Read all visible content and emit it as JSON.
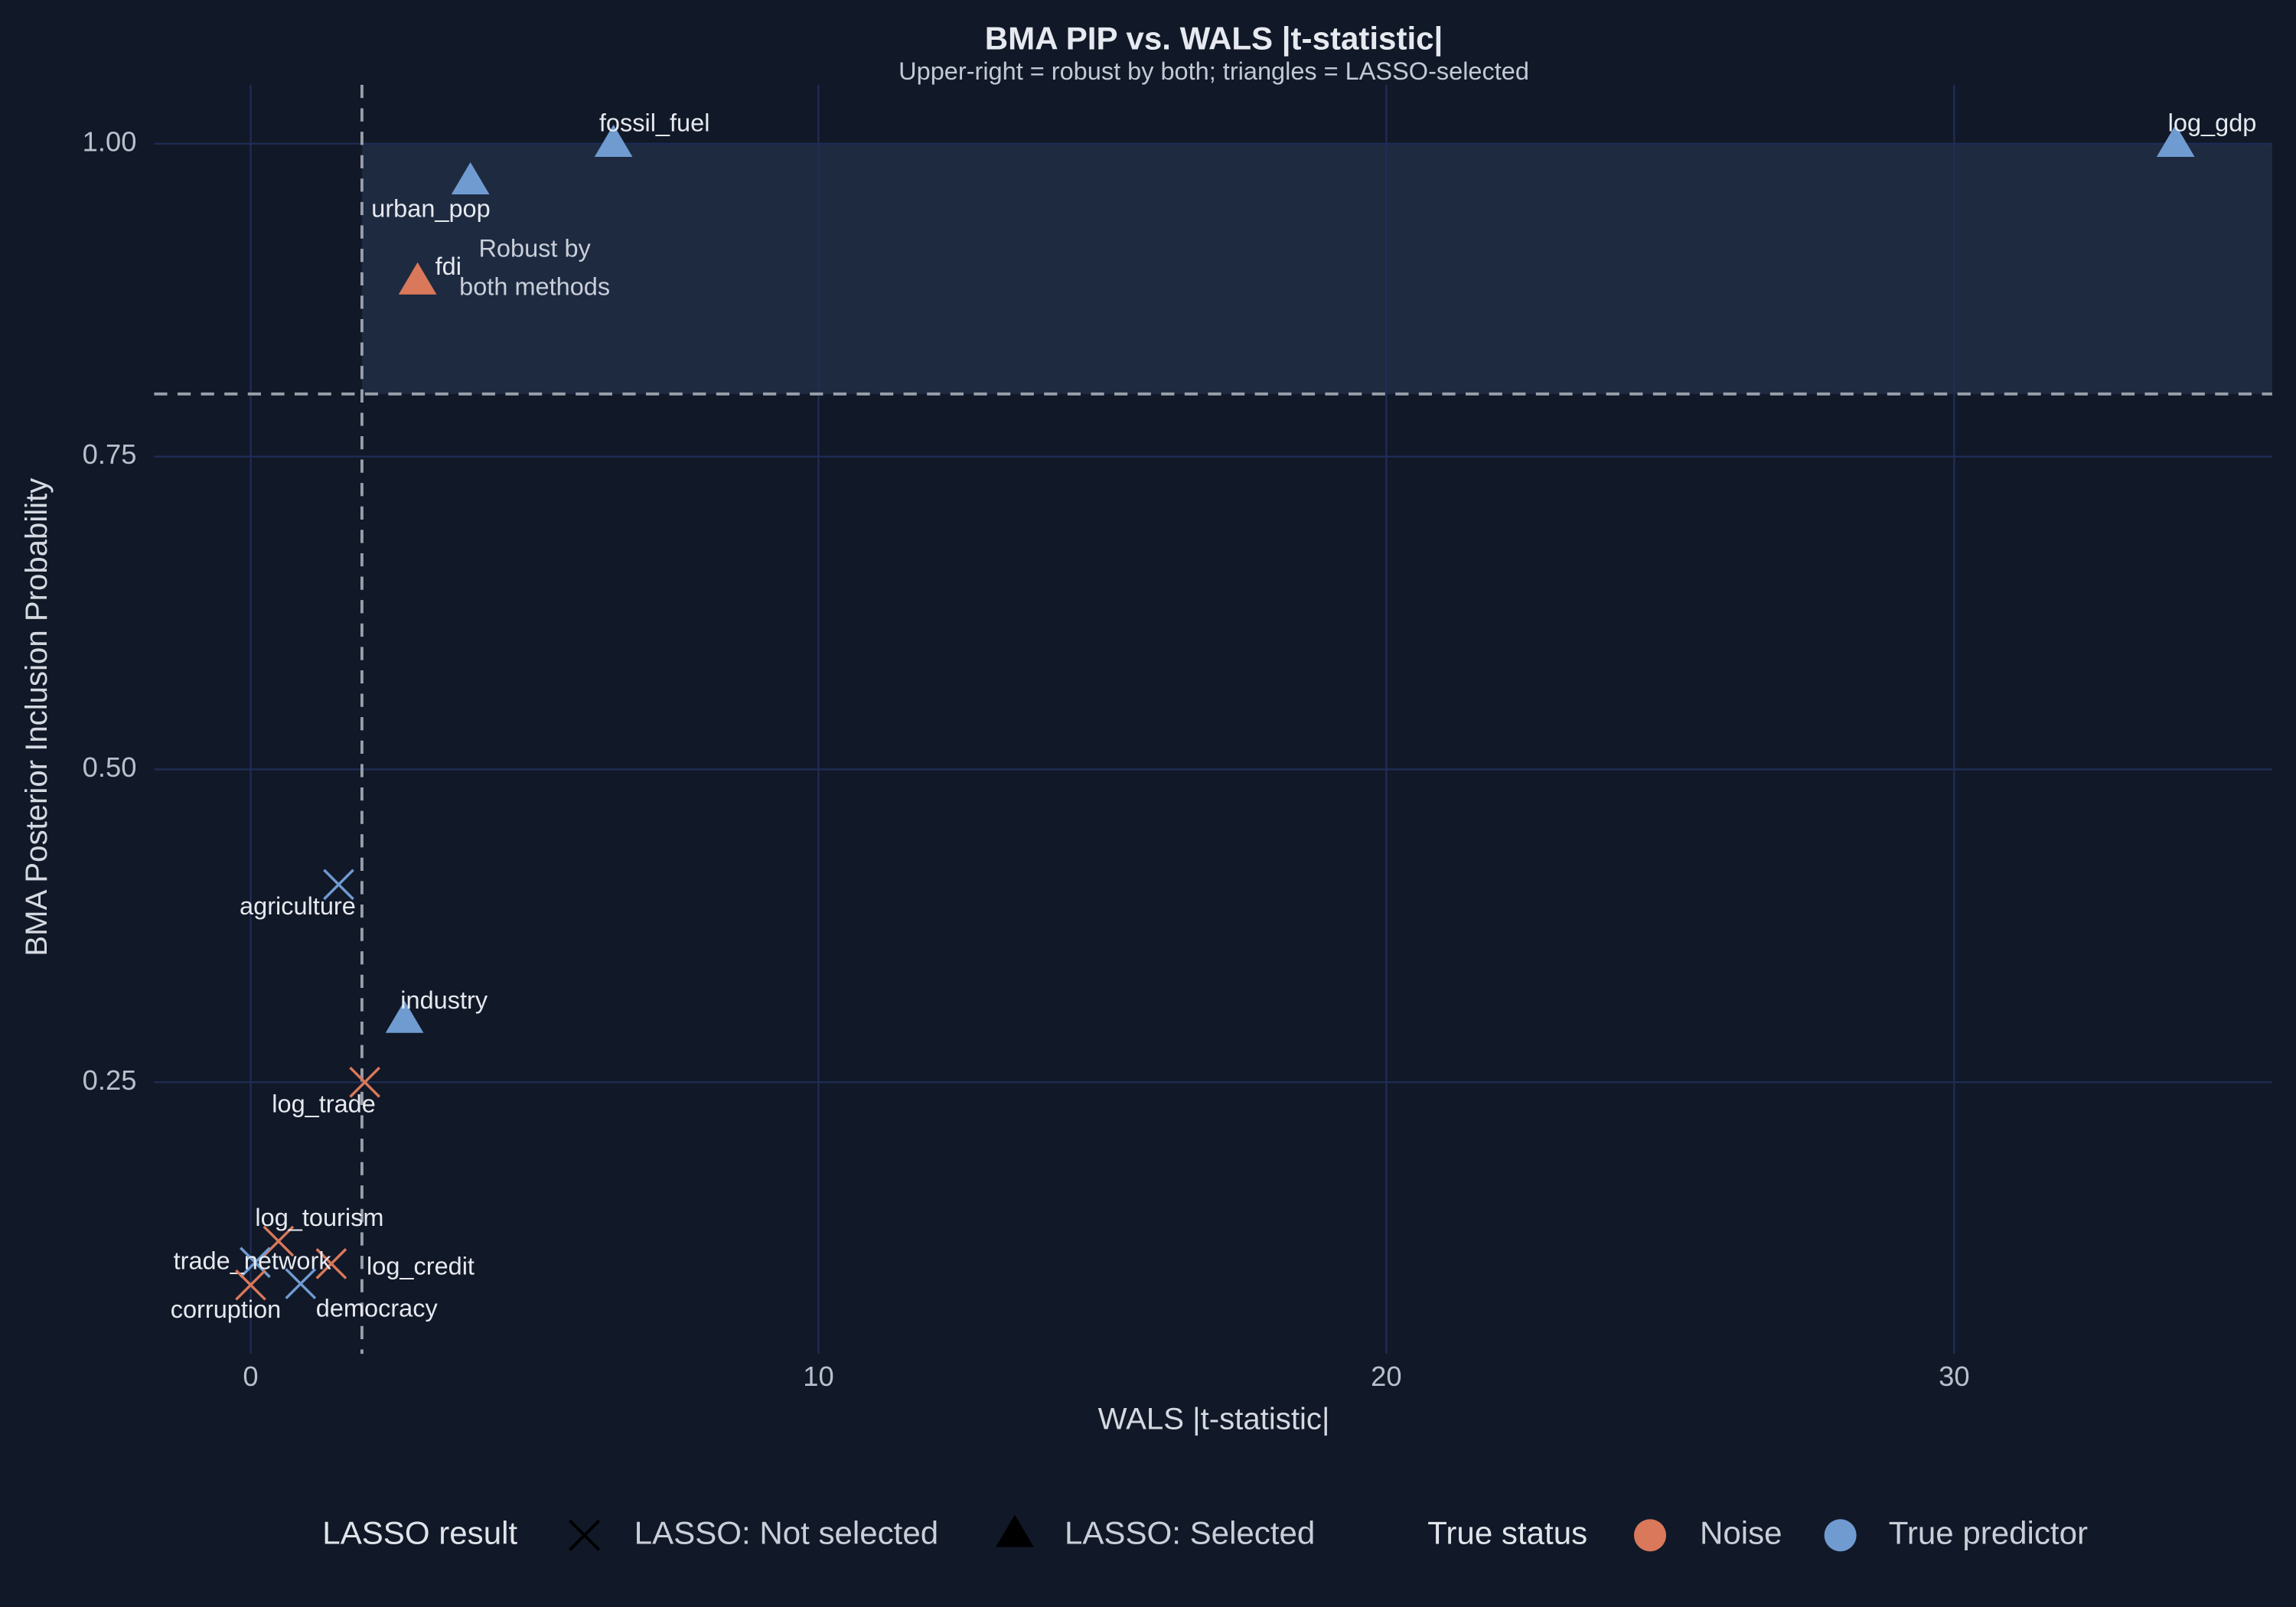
{
  "chart_data": {
    "type": "scatter",
    "title": "BMA PIP vs. WALS |t-statistic|",
    "subtitle": "Upper-right = robust by both; triangles = LASSO-selected",
    "x_label": "WALS |t-statistic|",
    "y_label": "BMA Posterior Inclusion Probability",
    "xlim": [
      -1.7,
      35.6
    ],
    "ylim": [
      0.033,
      1.047
    ],
    "xticks": [
      0,
      10,
      20,
      30
    ],
    "yticks": [
      {
        "value": 0.25,
        "label": "0.25"
      },
      {
        "value": 0.5,
        "label": "0.50"
      },
      {
        "value": 0.75,
        "label": "0.75"
      },
      {
        "value": 1,
        "label": "1.00"
      }
    ],
    "grid": true,
    "x_threshold": 1.96,
    "y_threshold": 0.8,
    "annotation": [
      "Robust by",
      "both methods"
    ],
    "points": [
      {
        "label": "log_gdp",
        "x": 33.9,
        "y": 1.0,
        "lasso": "LASSO: Selected",
        "status": "True predictor"
      },
      {
        "label": "fossil_fuel",
        "x": 6.39,
        "y": 1.0,
        "lasso": "LASSO: Selected",
        "status": "True predictor"
      },
      {
        "label": "urban_pop",
        "x": 3.87,
        "y": 0.97,
        "lasso": "LASSO: Selected",
        "status": "True predictor"
      },
      {
        "label": "fdi",
        "x": 2.94,
        "y": 0.89,
        "lasso": "LASSO: Selected",
        "status": "Noise"
      },
      {
        "label": "agriculture",
        "x": 1.55,
        "y": 0.408,
        "lasso": "LASSO: Not selected",
        "status": "True predictor"
      },
      {
        "label": "industry",
        "x": 2.71,
        "y": 0.3,
        "lasso": "LASSO: Selected",
        "status": "True predictor"
      },
      {
        "label": "log_trade",
        "x": 2.01,
        "y": 0.25,
        "lasso": "LASSO: Not selected",
        "status": "Noise"
      },
      {
        "label": "log_tourism",
        "x": 0.49,
        "y": 0.123,
        "lasso": "LASSO: Not selected",
        "status": "Noise"
      },
      {
        "label": "log_credit",
        "x": 1.42,
        "y": 0.105,
        "lasso": "LASSO: Not selected",
        "status": "Noise"
      },
      {
        "label": "trade_network",
        "x": 0.08,
        "y": 0.106,
        "lasso": "LASSO: Not selected",
        "status": "True predictor"
      },
      {
        "label": "corruption",
        "x": 0.0,
        "y": 0.088,
        "lasso": "LASSO: Not selected",
        "status": "Noise"
      },
      {
        "label": "democracy",
        "x": 0.88,
        "y": 0.089,
        "lasso": "LASSO: Not selected",
        "status": "True predictor"
      }
    ],
    "legend": {
      "lasso_title": "LASSO result",
      "lasso_items": [
        "LASSO: Not selected",
        "LASSO: Selected"
      ],
      "status_title": "True status",
      "status_items": [
        {
          "name": "Noise",
          "color": "#d9785a"
        },
        {
          "name": "True predictor",
          "color": "#6f9bd1"
        }
      ]
    }
  }
}
